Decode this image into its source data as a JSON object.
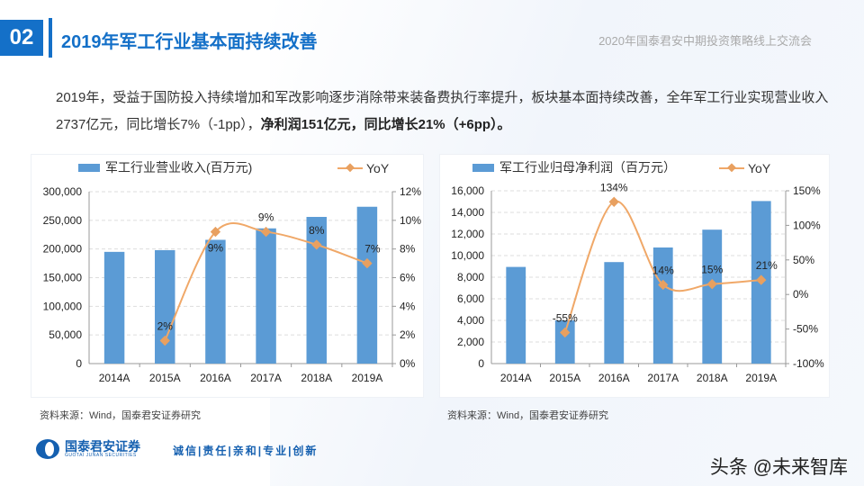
{
  "header": {
    "section_number": "02",
    "title": "2019年军工行业基本面持续改善",
    "conference": "2020年国泰君安中期投资策略线上交流会"
  },
  "summary": {
    "text_plain": "2019年，受益于国防投入持续增加和军改影响逐步消除带来装备费执行率提升，板块基本面持续改善，全年军工行业实现营业收入2737亿元，同比增长7%（-1pp），",
    "text_bold": "净利润151亿元，同比增长21%（+6pp）。"
  },
  "colors": {
    "brand": "#1470c8",
    "bar": "#5b9bd5",
    "line": "#f0a868",
    "marker": "#e8a060"
  },
  "chart_data": [
    {
      "type": "bar+line",
      "categories": [
        "2014A",
        "2015A",
        "2016A",
        "2017A",
        "2018A",
        "2019A"
      ],
      "series": [
        {
          "name": "军工行业营业收入(百万元)",
          "type": "bar",
          "axis": "left",
          "values": [
            195000,
            198000,
            216000,
            236000,
            256000,
            273700
          ]
        },
        {
          "name": "YoY",
          "type": "line",
          "axis": "right",
          "values": [
            null,
            1.6,
            9.2,
            9.2,
            8.3,
            7.0
          ],
          "labels": [
            "",
            "2%",
            "9%",
            "9%",
            "8%",
            "7%"
          ]
        }
      ],
      "ylim_left": [
        0,
        300000
      ],
      "yticks_left": [
        "0",
        "50,000",
        "100,000",
        "150,000",
        "200,000",
        "250,000",
        "300,000"
      ],
      "ylim_right": [
        0,
        12
      ],
      "yticks_right": [
        "0%",
        "2%",
        "4%",
        "6%",
        "8%",
        "10%",
        "12%"
      ],
      "legend": "top",
      "grid": true,
      "source": "资料来源：Wind，国泰君安证券研究"
    },
    {
      "type": "bar+line",
      "categories": [
        "2014A",
        "2015A",
        "2016A",
        "2017A",
        "2018A",
        "2019A"
      ],
      "series": [
        {
          "name": "军工行业归母净利润（百万元）",
          "type": "bar",
          "axis": "left",
          "values": [
            8950,
            4000,
            9400,
            10750,
            12400,
            15050
          ]
        },
        {
          "name": "YoY",
          "type": "line",
          "axis": "right",
          "values": [
            null,
            -55,
            134,
            14,
            15,
            21
          ],
          "labels": [
            "",
            "-55%",
            "134%",
            "14%",
            "15%",
            "21%"
          ]
        }
      ],
      "ylim_left": [
        0,
        16000
      ],
      "yticks_left": [
        "0",
        "2,000",
        "4,000",
        "6,000",
        "8,000",
        "10,000",
        "12,000",
        "14,000",
        "16,000"
      ],
      "ylim_right": [
        -100,
        150
      ],
      "yticks_right": [
        "-100%",
        "-50%",
        "0%",
        "50%",
        "100%",
        "150%"
      ],
      "legend": "top",
      "grid": true,
      "source": "资料来源：Wind，国泰君安证券研究"
    }
  ],
  "footer": {
    "logo_text": "国泰君安证券",
    "logo_sub": "GUOTAI JUNAN SECURITIES",
    "slogan": "诚信|责任|亲和|专业|创新",
    "watermark": "头条 @未来智库"
  }
}
